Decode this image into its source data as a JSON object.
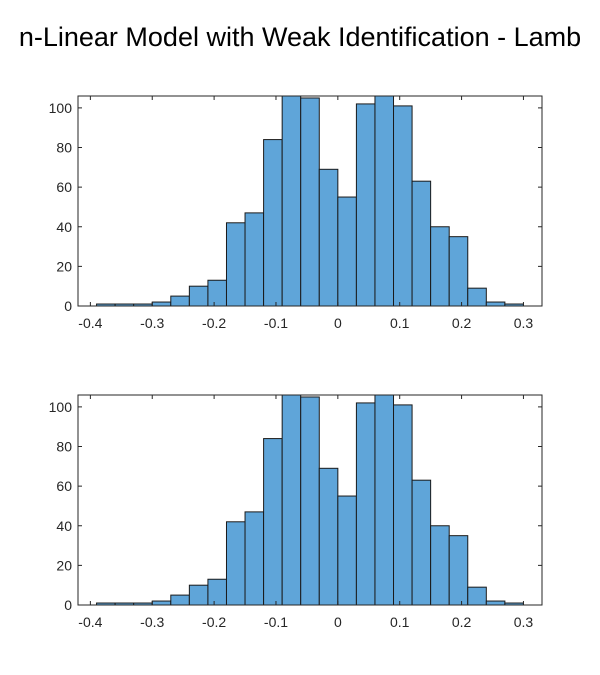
{
  "figure_title": "n-Linear Model with Weak Identification - Lamb",
  "chart_data": [
    {
      "type": "bar",
      "subtype": "histogram",
      "bar_color": "#5fa5d9",
      "edge_color": "#1a1a1a",
      "bin_edges": [
        -0.39,
        -0.36,
        -0.33,
        -0.3,
        -0.27,
        -0.24,
        -0.21,
        -0.18,
        -0.15,
        -0.12,
        -0.09,
        -0.06,
        -0.03,
        0.0,
        0.03,
        0.06,
        0.09,
        0.12,
        0.15,
        0.18,
        0.21,
        0.24,
        0.27,
        0.3
      ],
      "values": [
        1,
        1,
        1,
        2,
        5,
        10,
        13,
        42,
        47,
        84,
        106,
        105,
        69,
        55,
        102,
        106,
        101,
        63,
        40,
        35,
        9,
        2,
        1
      ],
      "xlim": [
        -0.42,
        0.33
      ],
      "ylim": [
        0,
        106
      ],
      "xticks": [
        -0.4,
        -0.3,
        -0.2,
        -0.1,
        0,
        0.1,
        0.2,
        0.3
      ],
      "xtick_labels": [
        "-0.4",
        "-0.3",
        "-0.2",
        "-0.1",
        "0",
        "0.1",
        "0.2",
        "0.3"
      ],
      "yticks": [
        0,
        20,
        40,
        60,
        80,
        100
      ],
      "ytick_labels": [
        "0",
        "20",
        "40",
        "60",
        "80",
        "100"
      ],
      "grid": false
    },
    {
      "type": "bar",
      "subtype": "histogram",
      "bar_color": "#5fa5d9",
      "edge_color": "#1a1a1a",
      "bin_edges": [
        -0.39,
        -0.36,
        -0.33,
        -0.3,
        -0.27,
        -0.24,
        -0.21,
        -0.18,
        -0.15,
        -0.12,
        -0.09,
        -0.06,
        -0.03,
        0.0,
        0.03,
        0.06,
        0.09,
        0.12,
        0.15,
        0.18,
        0.21,
        0.24,
        0.27,
        0.3
      ],
      "values": [
        1,
        1,
        1,
        2,
        5,
        10,
        13,
        42,
        47,
        84,
        106,
        105,
        69,
        55,
        102,
        106,
        101,
        63,
        40,
        35,
        9,
        2,
        1
      ],
      "xlim": [
        -0.42,
        0.33
      ],
      "ylim": [
        0,
        106
      ],
      "xticks": [
        -0.4,
        -0.3,
        -0.2,
        -0.1,
        0,
        0.1,
        0.2,
        0.3
      ],
      "xtick_labels": [
        "-0.4",
        "-0.3",
        "-0.2",
        "-0.1",
        "0",
        "0.1",
        "0.2",
        "0.3"
      ],
      "yticks": [
        0,
        20,
        40,
        60,
        80,
        100
      ],
      "ytick_labels": [
        "0",
        "20",
        "40",
        "60",
        "80",
        "100"
      ],
      "grid": false
    }
  ]
}
